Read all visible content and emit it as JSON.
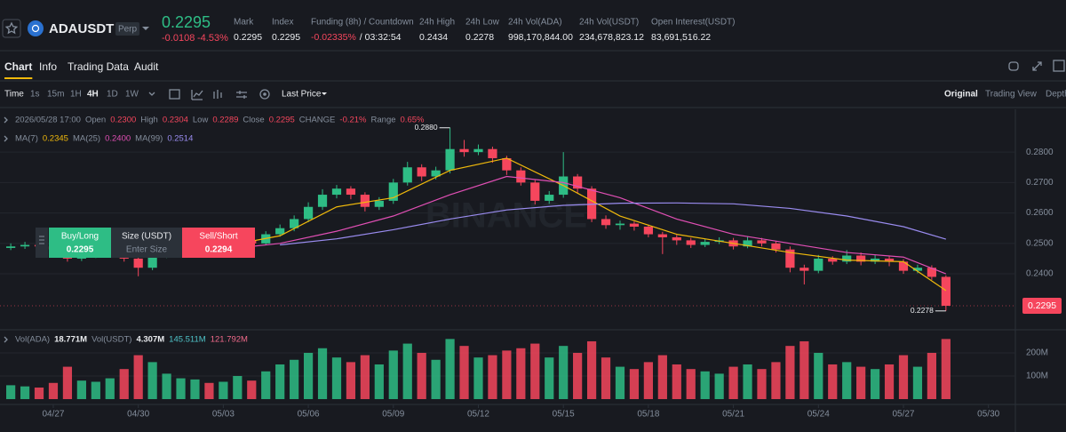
{
  "header": {
    "symbol": "ADAUSDT",
    "badge": "Perp",
    "price": "0.2295",
    "change": "-0.0108",
    "change_pct": "-4.53%",
    "stats": [
      {
        "label": "Mark",
        "value": "0.2295"
      },
      {
        "label": "Index",
        "value": "0.2295"
      },
      {
        "label": "Funding (8h) / Countdown",
        "value": "-0.02335%",
        "extra": "/ 03:32:54"
      },
      {
        "label": "24h High",
        "value": "0.2434"
      },
      {
        "label": "24h Low",
        "value": "0.2278"
      },
      {
        "label": "24h Vol(ADA)",
        "value": "998,170,844.00"
      },
      {
        "label": "24h Vol(USDT)",
        "value": "234,678,823.12"
      },
      {
        "label": "Open Interest(USDT)",
        "value": "83,691,516.22"
      }
    ]
  },
  "tabs": [
    "Chart",
    "Info",
    "Trading Data",
    "Audit"
  ],
  "intervals": [
    "Time",
    "1s",
    "15m",
    "1H",
    "4H",
    "1D",
    "1W"
  ],
  "price_source": "Last Price",
  "views": [
    "Original",
    "Trading View",
    "Depth"
  ],
  "trade": {
    "buy": "Buy/Long",
    "buy_price": "0.2295",
    "size": "Size (USDT)",
    "size_placeholder": "Enter Size",
    "sell": "Sell/Short",
    "sell_price": "0.2294"
  },
  "chart_data": {
    "type": "candlestick",
    "watermark": "BINANCE",
    "info": {
      "time": "2026/05/28 17:00",
      "items": [
        {
          "label": "Open",
          "value": "0.2300"
        },
        {
          "label": "High",
          "value": "0.2304"
        },
        {
          "label": "Low",
          "value": "0.2289"
        },
        {
          "label": "Close",
          "value": "0.2295"
        },
        {
          "label": "CHANGE",
          "value": "-0.21%"
        },
        {
          "label": "Range",
          "value": "0.65%"
        }
      ]
    },
    "x": [
      -1.5,
      -1,
      -0.5,
      0,
      0.5,
      1,
      1.5,
      2,
      2.5,
      3,
      3.5,
      4,
      4.5,
      5,
      5.5,
      6,
      6.5,
      7,
      7.5,
      8,
      8.5,
      9,
      9.5,
      10,
      10.5,
      11,
      11.5,
      12,
      12.5,
      13,
      13.5,
      14,
      14.5,
      15,
      15.5,
      16,
      16.5,
      17,
      17.5,
      18,
      18.5,
      19,
      19.5,
      20,
      20.5,
      21,
      21.5,
      22,
      22.5,
      23,
      23.5,
      24,
      24.5,
      25,
      25.5,
      26,
      26.5,
      27,
      27.5,
      28,
      28.5,
      29,
      29.5,
      30,
      30.5,
      31,
      31.5
    ],
    "open": [
      0.2485,
      0.249,
      0.2495,
      0.249,
      0.248,
      0.245,
      0.246,
      0.247,
      0.248,
      0.245,
      0.242,
      0.246,
      0.248,
      0.249,
      0.25,
      0.2495,
      0.2498,
      0.251,
      0.25,
      0.253,
      0.255,
      0.258,
      0.262,
      0.266,
      0.268,
      0.266,
      0.262,
      0.264,
      0.27,
      0.275,
      0.272,
      0.274,
      0.281,
      0.28,
      0.281,
      0.278,
      0.274,
      0.27,
      0.264,
      0.266,
      0.272,
      0.268,
      0.258,
      0.256,
      0.2565,
      0.2555,
      0.253,
      0.252,
      0.251,
      0.2495,
      0.2505,
      0.251,
      0.249,
      0.251,
      0.25,
      0.248,
      0.242,
      0.241,
      0.245,
      0.244,
      0.246,
      0.244,
      0.245,
      0.244,
      0.241,
      0.242,
      0.239
    ],
    "high": [
      0.25,
      0.2505,
      0.2502,
      0.2498,
      0.2485,
      0.247,
      0.248,
      0.2492,
      0.2488,
      0.2458,
      0.2468,
      0.249,
      0.25,
      0.251,
      0.2508,
      0.2506,
      0.252,
      0.2518,
      0.254,
      0.2562,
      0.2592,
      0.2635,
      0.2678,
      0.2692,
      0.2688,
      0.2668,
      0.2652,
      0.2712,
      0.2768,
      0.276,
      0.2752,
      0.288,
      0.284,
      0.2825,
      0.2818,
      0.2788,
      0.275,
      0.2708,
      0.2672,
      0.28,
      0.2728,
      0.2688,
      0.2592,
      0.2575,
      0.2572,
      0.2562,
      0.2538,
      0.2528,
      0.2518,
      0.2515,
      0.252,
      0.2518,
      0.2522,
      0.2518,
      0.2508,
      0.249,
      0.243,
      0.2462,
      0.2458,
      0.2478,
      0.247,
      0.2462,
      0.2458,
      0.2448,
      0.243,
      0.2428,
      0.2395
    ],
    "low": [
      0.2478,
      0.2482,
      0.248,
      0.247,
      0.244,
      0.2442,
      0.2452,
      0.2462,
      0.244,
      0.2392,
      0.2412,
      0.2452,
      0.247,
      0.2482,
      0.2485,
      0.2486,
      0.249,
      0.249,
      0.2495,
      0.2522,
      0.254,
      0.257,
      0.261,
      0.2648,
      0.2645,
      0.2605,
      0.261,
      0.263,
      0.269,
      0.2705,
      0.271,
      0.273,
      0.2785,
      0.279,
      0.2765,
      0.2725,
      0.269,
      0.2628,
      0.263,
      0.265,
      0.2665,
      0.257,
      0.2548,
      0.2545,
      0.2542,
      0.252,
      0.2465,
      0.2495,
      0.2485,
      0.2488,
      0.2498,
      0.248,
      0.2484,
      0.249,
      0.247,
      0.2405,
      0.2365,
      0.2402,
      0.243,
      0.2432,
      0.2428,
      0.2432,
      0.2425,
      0.24,
      0.2402,
      0.238,
      0.2278
    ],
    "close": [
      0.249,
      0.2495,
      0.249,
      0.248,
      0.245,
      0.246,
      0.247,
      0.248,
      0.245,
      0.242,
      0.246,
      0.248,
      0.249,
      0.25,
      0.2495,
      0.2498,
      0.251,
      0.25,
      0.253,
      0.255,
      0.258,
      0.262,
      0.266,
      0.268,
      0.266,
      0.262,
      0.264,
      0.27,
      0.275,
      0.272,
      0.274,
      0.281,
      0.28,
      0.281,
      0.278,
      0.274,
      0.27,
      0.264,
      0.266,
      0.272,
      0.268,
      0.258,
      0.256,
      0.2565,
      0.2555,
      0.253,
      0.252,
      0.251,
      0.2495,
      0.2505,
      0.251,
      0.249,
      0.251,
      0.25,
      0.248,
      0.242,
      0.241,
      0.245,
      0.244,
      0.246,
      0.244,
      0.245,
      0.244,
      0.241,
      0.242,
      0.239,
      0.2295
    ],
    "up_color": "#2ebd85",
    "down_color": "#f6465d",
    "xlim": [
      -1.88,
      33.95
    ],
    "xticks": [
      {
        "value": 0,
        "label": "04/27"
      },
      {
        "value": 3,
        "label": "04/30"
      },
      {
        "value": 6,
        "label": "05/03"
      },
      {
        "value": 9,
        "label": "05/06"
      },
      {
        "value": 12,
        "label": "05/09"
      },
      {
        "value": 15,
        "label": "05/12"
      },
      {
        "value": 18,
        "label": "05/15"
      },
      {
        "value": 21,
        "label": "05/18"
      },
      {
        "value": 24,
        "label": "05/21"
      },
      {
        "value": 27,
        "label": "05/24"
      },
      {
        "value": 30,
        "label": "05/27"
      },
      {
        "value": 33,
        "label": "05/30"
      }
    ],
    "ylim": [
      0.2219,
      0.2926
    ],
    "yticks": [
      {
        "value": 0.24,
        "label": "0.2400"
      },
      {
        "value": 0.25,
        "label": "0.2500"
      },
      {
        "value": 0.26,
        "label": "0.2600"
      },
      {
        "value": 0.27,
        "label": "0.2700"
      },
      {
        "value": 0.28,
        "label": "0.2800"
      }
    ],
    "grid": true,
    "series": [
      {
        "name": "MA(7)",
        "current": "0.2345",
        "color": "#f0b90b",
        "x": [
          0,
          2,
          4,
          6,
          8,
          10,
          12,
          14,
          16,
          18,
          20,
          22,
          24,
          26,
          28,
          30,
          31.5
        ],
        "values": [
          0.2485,
          0.247,
          0.2455,
          0.249,
          0.2525,
          0.262,
          0.265,
          0.274,
          0.278,
          0.269,
          0.259,
          0.253,
          0.25,
          0.247,
          0.2445,
          0.244,
          0.2345
        ]
      },
      {
        "name": "MA(25)",
        "current": "0.2400",
        "color": "#e04fb4",
        "x": [
          0,
          2,
          4,
          6,
          8,
          10,
          12,
          14,
          16,
          18,
          20,
          22,
          24,
          26,
          28,
          30,
          31.5
        ],
        "values": [
          0.249,
          0.2485,
          0.2475,
          0.248,
          0.25,
          0.254,
          0.259,
          0.266,
          0.272,
          0.27,
          0.265,
          0.258,
          0.253,
          0.25,
          0.247,
          0.2455,
          0.24
        ]
      },
      {
        "name": "MA(99)",
        "current": "0.2514",
        "color": "#9a8cf0",
        "x": [
          8,
          10,
          12,
          14,
          16,
          18,
          20,
          22,
          24,
          26,
          28,
          30,
          31.5
        ],
        "values": [
          0.2495,
          0.2515,
          0.2545,
          0.258,
          0.261,
          0.2625,
          0.2632,
          0.2633,
          0.263,
          0.2615,
          0.259,
          0.2555,
          0.2514
        ]
      }
    ],
    "volume": [
      60,
      55,
      50,
      70,
      140,
      80,
      75,
      90,
      130,
      190,
      160,
      110,
      90,
      85,
      70,
      75,
      100,
      80,
      120,
      150,
      170,
      200,
      220,
      180,
      160,
      190,
      150,
      210,
      240,
      200,
      170,
      260,
      230,
      180,
      190,
      210,
      220,
      240,
      180,
      230,
      200,
      250,
      180,
      140,
      130,
      160,
      190,
      150,
      130,
      120,
      110,
      140,
      150,
      130,
      160,
      230,
      250,
      200,
      150,
      160,
      140,
      130,
      150,
      190,
      140,
      200,
      260
    ],
    "volume_legend": [
      {
        "label": "Vol(ADA)",
        "value": "18.771M"
      },
      {
        "label": "Vol(USDT)",
        "value": "4.307M"
      },
      {
        "value": "145.511M"
      },
      {
        "value": "121.792M"
      }
    ],
    "y2lim": [
      0,
      296
    ],
    "y2ticks": [
      {
        "value": 100,
        "label": "100M"
      },
      {
        "value": 200,
        "label": "200M"
      }
    ],
    "annotations": [
      {
        "label": "0.2880",
        "x": 14,
        "value": 0.288
      },
      {
        "label": "0.2278",
        "x": 31.5,
        "value": 0.2278
      }
    ],
    "last_price": {
      "value": 0.2295,
      "label": "0.2295"
    }
  }
}
